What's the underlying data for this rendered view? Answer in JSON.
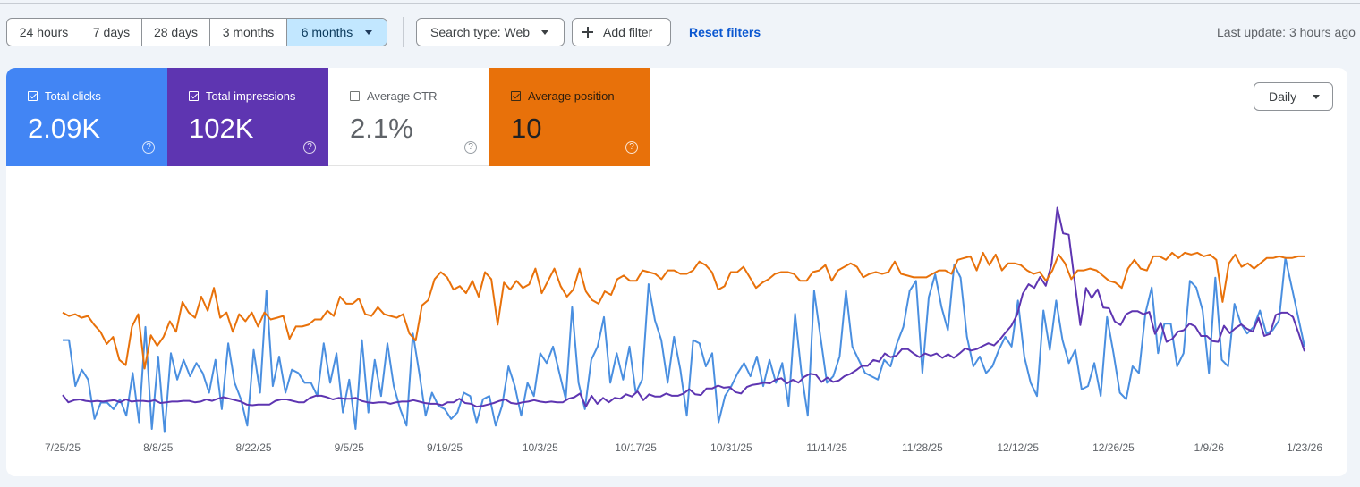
{
  "filters": {
    "ranges": [
      {
        "label": "24 hours",
        "active": false
      },
      {
        "label": "7 days",
        "active": false
      },
      {
        "label": "28 days",
        "active": false
      },
      {
        "label": "3 months",
        "active": false
      },
      {
        "label": "6 months",
        "active": true
      }
    ],
    "search_type_label": "Search type: Web",
    "add_filter_label": "Add filter",
    "reset_label": "Reset filters",
    "last_update": "Last update: 3 hours ago"
  },
  "metrics": {
    "clicks": {
      "label": "Total clicks",
      "value": "2.09K",
      "checked": true,
      "color": "#4285f4"
    },
    "impressions": {
      "label": "Total impressions",
      "value": "102K",
      "checked": true,
      "color": "#5e35b1"
    },
    "ctr": {
      "label": "Average CTR",
      "value": "2.1%",
      "checked": false,
      "color": "#ffffff"
    },
    "position": {
      "label": "Average position",
      "value": "10",
      "checked": true,
      "color": "#e8710a"
    },
    "help_glyph": "?"
  },
  "granularity": {
    "selected": "Daily"
  },
  "chart_data": {
    "type": "line",
    "x_tick_labels": [
      "7/25/25",
      "8/8/25",
      "8/22/25",
      "9/5/25",
      "9/19/25",
      "10/3/25",
      "10/17/25",
      "10/31/25",
      "11/14/25",
      "11/28/25",
      "12/12/25",
      "12/26/25",
      "1/9/26",
      "1/23/26"
    ],
    "y_axis_visible": false,
    "grid": false,
    "series": [
      {
        "key": "clicks",
        "color": "#4a8fe0",
        "values": [
          3.0,
          3.0,
          1.6,
          2.1,
          1.8,
          0.6,
          1.1,
          1.1,
          0.9,
          1.2,
          0.7,
          2.0,
          0.5,
          3.4,
          0.3,
          2.5,
          0.2,
          2.6,
          1.8,
          2.4,
          1.9,
          2.3,
          2.0,
          1.4,
          2.4,
          0.9,
          2.9,
          1.7,
          1.2,
          0.4,
          2.7,
          1.4,
          4.5,
          1.6,
          2.5,
          1.4,
          2.1,
          2.0,
          1.7,
          1.7,
          1.3,
          2.9,
          1.7,
          2.6,
          0.8,
          1.8,
          0.3,
          3.0,
          0.8,
          2.4,
          1.3,
          2.9,
          1.6,
          0.9,
          0.4,
          3.2,
          2.0,
          0.7,
          1.4,
          1.0,
          0.9,
          0.6,
          0.8,
          1.4,
          1.3,
          0.5,
          1.2,
          1.3,
          0.4,
          1.0,
          2.2,
          1.6,
          0.7,
          1.7,
          1.3,
          2.6,
          2.3,
          2.8,
          2.0,
          1.2,
          4.0,
          1.7,
          0.9,
          2.4,
          2.8,
          3.7,
          1.7,
          2.6,
          1.8,
          2.8,
          1.4,
          1.8,
          4.7,
          3.6,
          3.0,
          1.7,
          3.1,
          2.1,
          0.7,
          3.0,
          2.9,
          2.2,
          2.6,
          0.5,
          1.3,
          1.6,
          2.0,
          2.3,
          1.9,
          2.5,
          1.6,
          2.4,
          1.7,
          2.3,
          1.0,
          3.8,
          2.0,
          0.7,
          4.5,
          3.1,
          1.7,
          1.9,
          2.5,
          4.5,
          2.8,
          2.4,
          2.0,
          1.9,
          1.8,
          2.4,
          2.2,
          2.9,
          3.4,
          4.5,
          4.8,
          2.0,
          4.3,
          5.0,
          4.0,
          3.3,
          5.3,
          4.9,
          3.1,
          2.2,
          2.5,
          2.0,
          2.2,
          2.7,
          3.1,
          2.8,
          4.2,
          2.5,
          1.7,
          1.3,
          3.9,
          2.7,
          4.2,
          3.0,
          2.3,
          2.7,
          1.5,
          1.6,
          2.3,
          1.3,
          3.7,
          2.6,
          1.4,
          1.2,
          2.2,
          2.0,
          3.8,
          4.6,
          2.6,
          3.5,
          3.5,
          2.2,
          2.6,
          4.8,
          4.6,
          3.9,
          2.0,
          4.9,
          2.4,
          2.2,
          4.1,
          3.5,
          3.2,
          3.4,
          3.9,
          3.2,
          3.3,
          3.6,
          5.5,
          4.6,
          3.7,
          2.8
        ],
        "ymin": 0,
        "ymax": 7.2
      },
      {
        "key": "impressions",
        "color": "#5e35b1",
        "values": [
          60,
          50,
          53,
          54,
          52,
          51,
          52,
          51,
          52,
          53,
          50,
          54,
          51,
          52,
          52,
          51,
          53,
          49,
          50,
          51,
          51,
          52,
          52,
          50,
          51,
          54,
          52,
          55,
          57,
          55,
          53,
          51,
          47,
          46,
          47,
          47,
          47,
          52,
          54,
          54,
          52,
          50,
          50,
          56,
          59,
          59,
          57,
          54,
          56,
          55,
          55,
          56,
          52,
          50,
          49,
          50,
          50,
          48,
          50,
          51,
          51,
          53,
          51,
          49,
          48,
          48,
          46,
          50,
          50,
          55,
          49,
          48,
          44,
          45,
          47,
          49,
          52,
          54,
          49,
          48,
          50,
          51,
          53,
          51,
          50,
          51,
          50,
          50,
          55,
          57,
          62,
          44,
          59,
          48,
          56,
          50,
          56,
          55,
          61,
          58,
          65,
          53,
          61,
          58,
          58,
          62,
          59,
          59,
          62,
          68,
          61,
          60,
          69,
          69,
          73,
          70,
          71,
          64,
          62,
          71,
          74,
          75,
          77,
          76,
          81,
          83,
          76,
          81,
          77,
          85,
          89,
          88,
          78,
          84,
          78,
          80,
          86,
          89,
          94,
          100,
          100,
          108,
          106,
          117,
          112,
          114,
          123,
          123,
          117,
          112,
          117,
          114,
          117,
          111,
          116,
          111,
          117,
          124,
          121,
          123,
          127,
          131,
          128,
          136,
          146,
          155,
          170,
          199,
          212,
          207,
          222,
          210,
          240,
          317,
          282,
          280,
          217,
          156,
          207,
          193,
          205,
          180,
          179,
          161,
          156,
          171,
          175,
          175,
          171,
          174,
          144,
          159,
          133,
          137,
          147,
          149,
          158,
          154,
          141,
          141,
          134,
          133,
          155,
          145,
          152,
          157,
          151,
          147,
          166,
          141,
          144,
          170,
          173,
          173,
          167,
          144,
          120
        ],
        "ymin": 0,
        "ymax": 325
      },
      {
        "key": "position",
        "color": "#e8710a",
        "values": [
          7.2,
          7.0,
          7.1,
          6.9,
          7.0,
          6.5,
          6.1,
          5.4,
          5.8,
          4.5,
          4.2,
          6.4,
          7.1,
          4.0,
          5.9,
          5.3,
          5.8,
          6.7,
          6.1,
          7.8,
          7.2,
          6.9,
          8.1,
          7.3,
          8.6,
          6.9,
          7.2,
          6.1,
          7.1,
          6.7,
          7.2,
          6.4,
          7.2,
          6.8,
          6.9,
          7.0,
          5.7,
          6.4,
          6.4,
          6.5,
          6.8,
          6.8,
          7.3,
          7.0,
          8.1,
          7.7,
          7.7,
          8.0,
          7.1,
          7.0,
          7.5,
          7.1,
          7.0,
          6.9,
          7.1,
          6.0,
          5.6,
          7.6,
          7.9,
          9.1,
          9.5,
          9.2,
          8.5,
          8.7,
          8.3,
          9.0,
          8.1,
          9.5,
          9.1,
          6.5,
          8.9,
          8.5,
          9.0,
          8.6,
          8.8,
          9.7,
          8.3,
          9.0,
          9.7,
          8.7,
          8.1,
          8.5,
          9.7,
          8.4,
          7.9,
          7.7,
          8.4,
          8.2,
          9.1,
          9.3,
          9.0,
          9.0,
          9.6,
          9.5,
          9.4,
          9.1,
          9.6,
          9.6,
          9.4,
          9.4,
          9.6,
          10.1,
          9.9,
          9.5,
          8.5,
          8.7,
          9.5,
          9.5,
          9.8,
          9.2,
          8.6,
          8.9,
          9.1,
          9.4,
          9.5,
          9.5,
          9.4,
          9.0,
          9.0,
          9.5,
          9.6,
          9.9,
          9.0,
          9.6,
          9.8,
          10.0,
          9.8,
          9.2,
          9.4,
          9.5,
          9.4,
          9.5,
          10.1,
          9.4,
          9.3,
          9.2,
          9.2,
          9.2,
          9.4,
          9.6,
          9.6,
          9.4,
          10.2,
          10.3,
          10.4,
          9.6,
          10.6,
          9.9,
          10.5,
          9.6,
          10.0,
          10.0,
          9.9,
          9.6,
          9.4,
          9.5,
          9.0,
          9.6,
          10.5,
          10.0,
          9.1,
          9.6,
          9.6,
          9.7,
          9.6,
          9.3,
          9.0,
          8.9,
          8.6,
          9.7,
          10.2,
          9.7,
          9.6,
          10.4,
          10.4,
          10.2,
          10.6,
          10.3,
          10.6,
          10.5,
          10.6,
          10.4,
          10.5,
          10.2,
          7.8,
          10.0,
          10.5,
          9.8,
          10.0,
          9.7,
          10.0,
          10.3,
          10.3,
          10.4,
          10.3,
          10.3,
          10.4,
          10.4
        ],
        "ymin": 0,
        "ymax": 13.5
      }
    ]
  }
}
